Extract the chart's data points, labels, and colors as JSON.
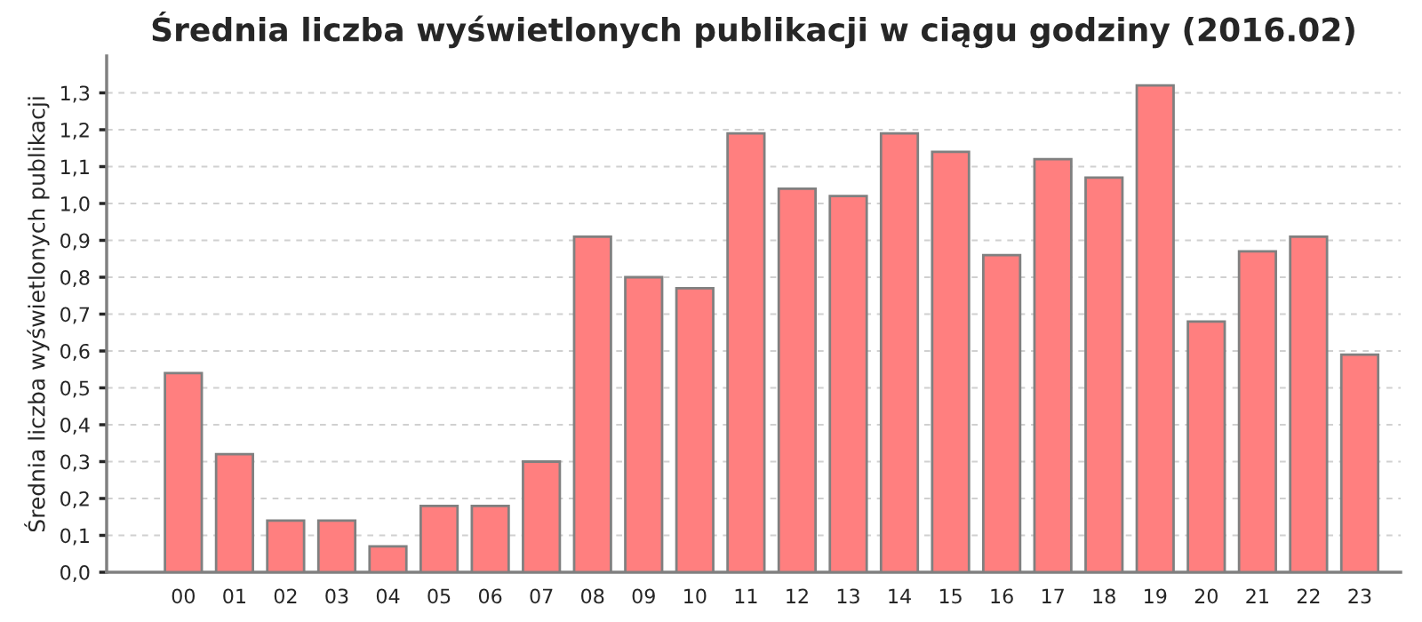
{
  "chart_data": {
    "type": "bar",
    "title": "Średnia liczba wyświetlonych publikacji w ciągu godziny (2016.02)",
    "ylabel": "Średnia liczba wyświetlonych publikacji",
    "categories": [
      "00",
      "01",
      "02",
      "03",
      "04",
      "05",
      "06",
      "07",
      "08",
      "09",
      "10",
      "11",
      "12",
      "13",
      "14",
      "15",
      "16",
      "17",
      "18",
      "19",
      "20",
      "21",
      "22",
      "23"
    ],
    "values": [
      0.54,
      0.32,
      0.14,
      0.14,
      0.07,
      0.18,
      0.18,
      0.3,
      0.91,
      0.8,
      0.77,
      1.19,
      1.04,
      1.02,
      1.19,
      1.14,
      0.86,
      1.12,
      1.07,
      1.32,
      0.68,
      0.87,
      0.91,
      0.59
    ],
    "color": "#ff7f7f",
    "ylim": [
      0,
      1.4
    ],
    "yticks": [
      {
        "value": 0,
        "label": "0,0"
      },
      {
        "value": 0.1,
        "label": "0,1"
      },
      {
        "value": 0.2,
        "label": "0,2"
      },
      {
        "value": 0.3,
        "label": "0,3"
      },
      {
        "value": 0.4,
        "label": "0,4"
      },
      {
        "value": 0.5,
        "label": "0,5"
      },
      {
        "value": 0.6,
        "label": "0,6"
      },
      {
        "value": 0.7,
        "label": "0,7"
      },
      {
        "value": 0.8,
        "label": "0,8"
      },
      {
        "value": 0.9,
        "label": "0,9"
      },
      {
        "value": 1.0,
        "label": "1,0"
      },
      {
        "value": 1.1,
        "label": "1,1"
      },
      {
        "value": 1.2,
        "label": "1,2"
      },
      {
        "value": 1.3,
        "label": "1,3"
      }
    ],
    "grid": "y"
  }
}
